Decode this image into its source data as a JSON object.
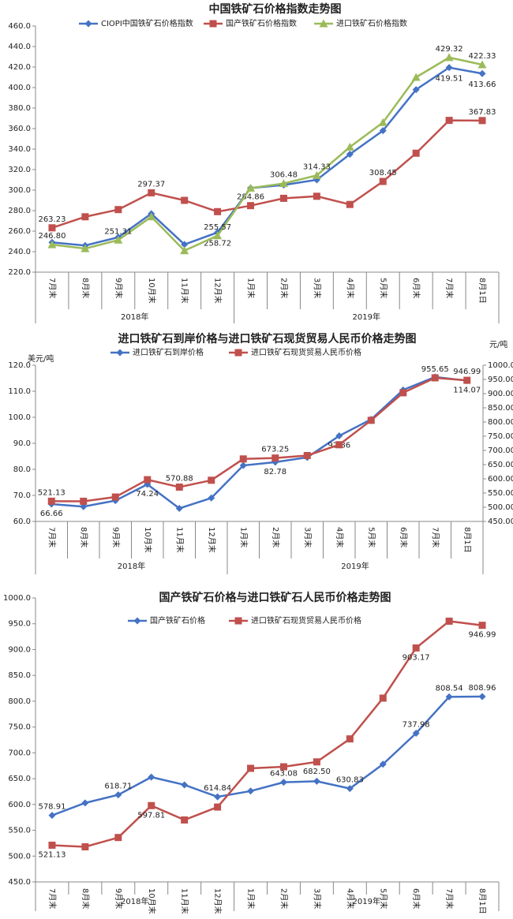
{
  "chart_data": [
    {
      "type": "line",
      "title": "中国铁矿石价格指数走势图",
      "category_groups": [
        {
          "name": "2018年",
          "categories": [
            "7月末",
            "8月末",
            "9月末",
            "10月末",
            "11月末",
            "12月末"
          ]
        },
        {
          "name": "2019年",
          "categories": [
            "1月末",
            "2月末",
            "3月末",
            "4月末",
            "5月末",
            "6月末",
            "7月末",
            "8月1日"
          ]
        }
      ],
      "ylim": [
        220,
        460
      ],
      "yticks": [
        {
          "value": 220,
          "label": "220.0"
        },
        {
          "value": 240,
          "label": "240.0"
        },
        {
          "value": 260,
          "label": "260.0"
        },
        {
          "value": 280,
          "label": "280.0"
        },
        {
          "value": 300,
          "label": "300.0"
        },
        {
          "value": 320,
          "label": "320.0"
        },
        {
          "value": 340,
          "label": "340.0"
        },
        {
          "value": 360,
          "label": "360.0"
        },
        {
          "value": 380,
          "label": "380.0"
        },
        {
          "value": 400,
          "label": "400.0"
        },
        {
          "value": 420,
          "label": "420.0"
        },
        {
          "value": 440,
          "label": "440.0"
        },
        {
          "value": 460,
          "label": "460.0"
        }
      ],
      "legend": "top",
      "series": [
        {
          "name": "CIOPI中国铁矿石价格指数",
          "color": "#4472c4",
          "marker": "diamond",
          "values": [
            249,
            246,
            254,
            277,
            247,
            258.72,
            302,
            305,
            310,
            335,
            358,
            398,
            419.51,
            413.66
          ],
          "value_labels": [
            null,
            null,
            null,
            null,
            null,
            "258.72",
            null,
            null,
            null,
            null,
            null,
            null,
            "419.51",
            "413.66"
          ]
        },
        {
          "name": "国产铁矿石价格指数",
          "color": "#c0504d",
          "marker": "square",
          "values": [
            263.23,
            274,
            281,
            297.37,
            290,
            279,
            284.86,
            292,
            294,
            286,
            308.45,
            336,
            368,
            367.83
          ],
          "value_labels": [
            "263.23",
            null,
            null,
            "297.37",
            null,
            null,
            "284.86",
            null,
            null,
            null,
            "308.45",
            null,
            null,
            "367.83"
          ]
        },
        {
          "name": "进口铁矿石价格指数",
          "color": "#9bbb59",
          "marker": "triangle",
          "values": [
            246.8,
            243,
            251.31,
            274,
            241,
            255.57,
            302,
            306.48,
            314.33,
            342,
            366,
            410,
            429.32,
            422.33
          ],
          "value_labels": [
            "246.80",
            null,
            "251.31",
            null,
            null,
            "255.57",
            null,
            "306.48",
            "314.33",
            null,
            null,
            null,
            "429.32",
            "422.33"
          ]
        }
      ]
    },
    {
      "type": "line",
      "title": "进口铁矿石到岸价格与进口铁矿石现货贸易人民币价格走势图",
      "category_groups": [
        {
          "name": "2018年",
          "categories": [
            "7月末",
            "8月末",
            "9月末",
            "10月末",
            "11月末",
            "12月末"
          ]
        },
        {
          "name": "2019年",
          "categories": [
            "1月末",
            "2月末",
            "3月末",
            "4月末",
            "5月末",
            "6月末",
            "7月末",
            "8月1日"
          ]
        }
      ],
      "y_label": "美元/吨",
      "y2_label": "元/吨",
      "ylim": [
        60,
        120
      ],
      "yticks": [
        {
          "value": 60,
          "label": "60.0"
        },
        {
          "value": 70,
          "label": "70.0"
        },
        {
          "value": 80,
          "label": "80.0"
        },
        {
          "value": 90,
          "label": "90.0"
        },
        {
          "value": 100,
          "label": "100.0"
        },
        {
          "value": 110,
          "label": "110.0"
        },
        {
          "value": 120,
          "label": "120.0"
        }
      ],
      "y2lim": [
        450,
        1000
      ],
      "y2ticks": [
        {
          "value": 450,
          "label": "450.00"
        },
        {
          "value": 500,
          "label": "500.00"
        },
        {
          "value": 550,
          "label": "550.00"
        },
        {
          "value": 600,
          "label": "600.00"
        },
        {
          "value": 650,
          "label": "650.00"
        },
        {
          "value": 700,
          "label": "700.00"
        },
        {
          "value": 750,
          "label": "750.00"
        },
        {
          "value": 800,
          "label": "800.00"
        },
        {
          "value": 850,
          "label": "850.00"
        },
        {
          "value": 900,
          "label": "900.00"
        },
        {
          "value": 950,
          "label": "950.00"
        },
        {
          "value": 1000,
          "label": "1000.00"
        }
      ],
      "legend": "top",
      "series": [
        {
          "name": "进口铁矿石到岸价格",
          "color": "#4472c4",
          "marker": "diamond",
          "values": [
            66.66,
            65.7,
            68,
            74.24,
            65,
            69,
            81.5,
            82.78,
            84.6,
            92.86,
            99.2,
            110.5,
            115.5,
            114.07
          ],
          "value_labels": [
            "66.66",
            null,
            null,
            "74.24",
            null,
            null,
            null,
            "82.78",
            null,
            "92.86",
            null,
            null,
            null,
            "114.07"
          ]
        },
        {
          "name": "进口铁矿石现货贸易人民币价格",
          "color": "#c0504d",
          "marker": "square",
          "axis": "y2",
          "values": [
            521.13,
            521,
            536,
            597,
            570.88,
            595,
            670,
            673.25,
            682,
            720,
            806,
            903,
            955.65,
            946.99
          ],
          "value_labels": [
            "521.13",
            null,
            null,
            null,
            "570.88",
            null,
            null,
            "673.25",
            null,
            null,
            null,
            null,
            "955.65",
            "946.99"
          ]
        }
      ]
    },
    {
      "type": "line",
      "title": "国产铁矿石价格与进口铁矿石人民币价格走势图",
      "category_groups": [
        {
          "name": "2018年",
          "categories": [
            "7月末",
            "8月末",
            "9月末",
            "10月末",
            "11月末",
            "12月末"
          ]
        },
        {
          "name": "2019年",
          "categories": [
            "1月末",
            "2月末",
            "3月末",
            "4月末",
            "5月末",
            "6月末",
            "7月末",
            "8月1日"
          ]
        }
      ],
      "ylim": [
        450,
        1000
      ],
      "yticks": [
        {
          "value": 450,
          "label": "450.0"
        },
        {
          "value": 500,
          "label": "500.0"
        },
        {
          "value": 550,
          "label": "550.0"
        },
        {
          "value": 600,
          "label": "600.0"
        },
        {
          "value": 650,
          "label": "650.0"
        },
        {
          "value": 700,
          "label": "700.0"
        },
        {
          "value": 750,
          "label": "750.0"
        },
        {
          "value": 800,
          "label": "800.0"
        },
        {
          "value": 850,
          "label": "850.0"
        },
        {
          "value": 900,
          "label": "900.0"
        },
        {
          "value": 950,
          "label": "950.0"
        },
        {
          "value": 1000,
          "label": "1000.0"
        }
      ],
      "legend": "top",
      "series": [
        {
          "name": "国产铁矿石价格",
          "color": "#4472c4",
          "marker": "diamond",
          "values": [
            578.91,
            603,
            618.71,
            653,
            638,
            614.84,
            626,
            643.08,
            645,
            630.83,
            678,
            737.98,
            808.54,
            808.96
          ],
          "value_labels": [
            "578.91",
            null,
            "618.71",
            null,
            null,
            "614.84",
            null,
            "643.08",
            null,
            "630.83",
            null,
            "737.98",
            "808.54",
            "808.96"
          ]
        },
        {
          "name": "进口铁矿石现货贸易人民币价格",
          "color": "#c0504d",
          "marker": "square",
          "values": [
            521.13,
            518,
            536,
            597.81,
            570,
            595,
            670,
            673,
            682.5,
            727,
            806,
            903.17,
            955,
            946.99
          ],
          "value_labels": [
            "521.13",
            null,
            null,
            "597.81",
            null,
            null,
            null,
            null,
            "682.50",
            null,
            null,
            "903.17",
            null,
            "946.99"
          ]
        }
      ]
    }
  ]
}
